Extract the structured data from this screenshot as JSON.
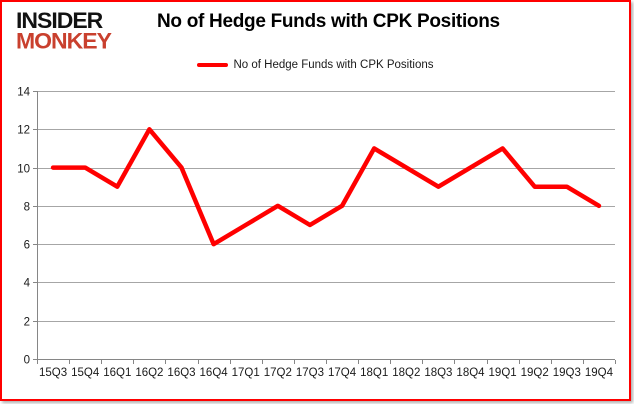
{
  "page": {
    "background": "#ffffff",
    "frame_border_color": "#ff0000"
  },
  "logo": {
    "line1": "INSIDER",
    "line2": "MONKEY",
    "line1_color": "#121212",
    "line2_color": "#c9402e"
  },
  "header": {
    "title": "No of Hedge Funds with CPK Positions"
  },
  "legend": {
    "label": "No of Hedge Funds with CPK Positions",
    "swatch_color": "#ff0000"
  },
  "chart_data": {
    "type": "line",
    "title": "No of Hedge Funds with CPK Positions",
    "categories": [
      "15Q3",
      "15Q4",
      "16Q1",
      "16Q2",
      "16Q3",
      "16Q4",
      "17Q1",
      "17Q2",
      "17Q3",
      "17Q4",
      "18Q1",
      "18Q2",
      "18Q3",
      "18Q4",
      "19Q1",
      "19Q2",
      "19Q3",
      "19Q4"
    ],
    "series": [
      {
        "name": "No of Hedge Funds with CPK Positions",
        "color": "#ff0000",
        "values": [
          10,
          10,
          9,
          12,
          10,
          6,
          7,
          8,
          7,
          8,
          11,
          10,
          9,
          10,
          11,
          9,
          9,
          8
        ]
      }
    ],
    "xlabel": "",
    "ylabel": "",
    "ylim": [
      0,
      14
    ],
    "ytick_step": 2,
    "grid": true,
    "legend_position": "top",
    "gridline_color": "#a6a6a6",
    "axis_color": "#868686",
    "tick_label_color": "#1a1a1a",
    "line_width": 4.5
  }
}
